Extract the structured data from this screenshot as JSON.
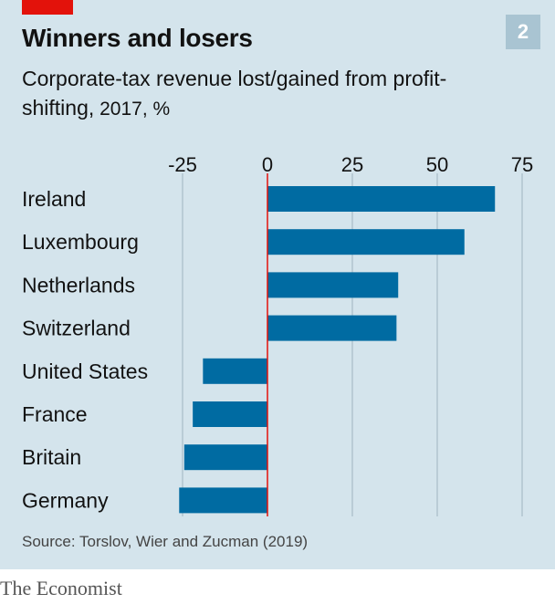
{
  "header": {
    "title": "Winners and losers",
    "badge": "2",
    "subtitle_main": "Corporate-tax revenue lost/gained from profit-shifting,",
    "subtitle_unit": " 2017, %"
  },
  "footer": {
    "source": "Source: Torslov, Wier and Zucman (2019)",
    "brand": "The Economist"
  },
  "colors": {
    "bar": "#006ba2",
    "gridline": "#a8bcc7",
    "zero_line": "#e3120b",
    "panel": "#d4e4ec",
    "accent": "#e3120b"
  },
  "chart_data": {
    "type": "bar",
    "orientation": "horizontal",
    "title": "Winners and losers",
    "subtitle": "Corporate-tax revenue lost/gained from profit-shifting, 2017, %",
    "categories": [
      "Ireland",
      "Luxembourg",
      "Netherlands",
      "Switzerland",
      "United States",
      "France",
      "Britain",
      "Germany"
    ],
    "values": [
      67,
      58,
      38.5,
      38,
      -19,
      -22,
      -24.5,
      -26
    ],
    "xlim": [
      -25,
      75
    ],
    "xticks": [
      -25,
      0,
      25,
      50,
      75
    ],
    "xtick_labels": [
      "-25",
      "0",
      "25",
      "50",
      "75"
    ],
    "grid": true,
    "legend": "none"
  }
}
